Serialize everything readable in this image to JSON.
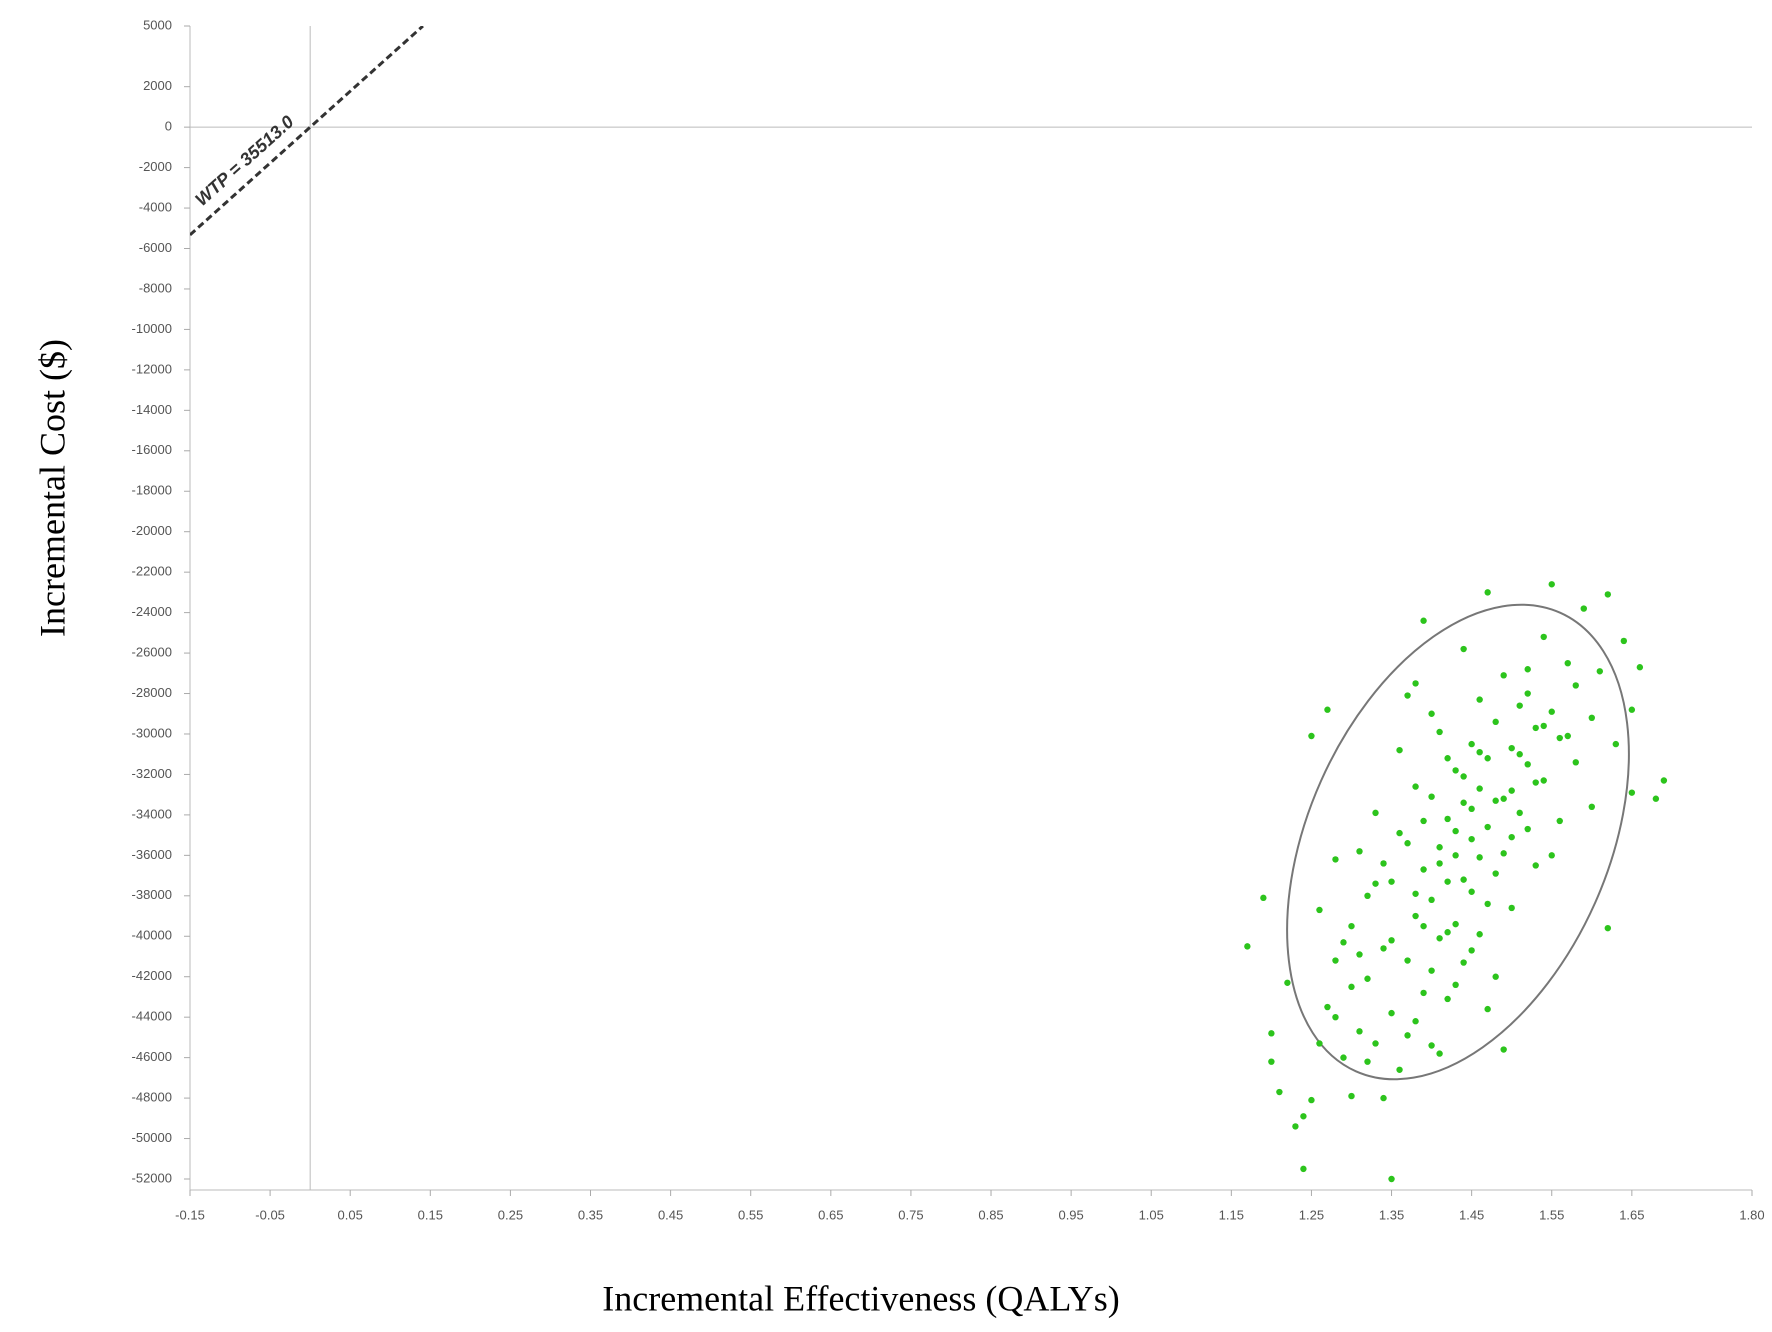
{
  "chart_data": {
    "type": "scatter",
    "x_label": "Incremental Effectiveness (QALYs)",
    "y_label": "Incremental Cost ($)",
    "color": "#2cc41c",
    "xlim": [
      -0.15,
      1.8
    ],
    "ylim": [
      -52000,
      5000
    ],
    "xticks": [
      -0.15,
      -0.05,
      0.05,
      0.15,
      0.25,
      0.35,
      0.45,
      0.55,
      0.65,
      0.75,
      0.85,
      0.95,
      1.05,
      1.15,
      1.25,
      1.35,
      1.45,
      1.55,
      1.65,
      {
        "value": 1.8,
        "label": "1.80"
      }
    ],
    "yticks": [
      5000,
      2000,
      0,
      -2000,
      -4000,
      -6000,
      -8000,
      -10000,
      -12000,
      -14000,
      -16000,
      -18000,
      -20000,
      -22000,
      -24000,
      -26000,
      -28000,
      -30000,
      -32000,
      -34000,
      -36000,
      -38000,
      -40000,
      -42000,
      -44000,
      -46000,
      -48000,
      -50000,
      -52000
    ],
    "quadrant_lines": true,
    "wtp_line": {
      "label": "WTP = 35513.0",
      "value": 35513
    },
    "x": [
      1.17,
      1.19,
      1.2,
      1.21,
      1.2,
      1.22,
      1.23,
      1.24,
      1.24,
      1.25,
      1.25,
      1.27,
      1.26,
      1.27,
      1.28,
      1.28,
      1.29,
      1.3,
      1.3,
      1.31,
      1.31,
      1.32,
      1.32,
      1.33,
      1.33,
      1.34,
      1.34,
      1.35,
      1.35,
      1.35,
      1.36,
      1.36,
      1.37,
      1.37,
      1.37,
      1.38,
      1.38,
      1.38,
      1.39,
      1.39,
      1.39,
      1.4,
      1.4,
      1.4,
      1.41,
      1.41,
      1.41,
      1.42,
      1.42,
      1.42,
      1.43,
      1.43,
      1.43,
      1.44,
      1.44,
      1.44,
      1.45,
      1.45,
      1.45,
      1.46,
      1.46,
      1.46,
      1.47,
      1.47,
      1.47,
      1.48,
      1.48,
      1.48,
      1.49,
      1.49,
      1.5,
      1.5,
      1.5,
      1.51,
      1.51,
      1.52,
      1.52,
      1.53,
      1.53,
      1.54,
      1.54,
      1.55,
      1.55,
      1.56,
      1.56,
      1.57,
      1.58,
      1.58,
      1.59,
      1.6,
      1.6,
      1.61,
      1.62,
      1.62,
      1.63,
      1.64,
      1.65,
      1.65,
      1.66,
      1.68,
      1.69,
      1.26,
      1.29,
      1.33,
      1.36,
      1.38,
      1.4,
      1.41,
      1.42,
      1.43,
      1.44,
      1.45,
      1.46,
      1.47,
      1.48,
      1.49,
      1.51,
      1.52,
      1.53,
      1.35,
      1.37,
      1.39,
      1.41,
      1.43,
      1.45,
      1.47,
      1.49,
      1.44,
      1.46,
      1.5,
      1.55,
      1.57,
      1.3,
      1.32,
      1.34,
      1.28,
      1.31,
      1.39,
      1.42,
      1.4,
      1.38,
      1.52,
      1.54
    ],
    "values": [
      -40500,
      -38100,
      -46200,
      -47700,
      -44800,
      -42300,
      -49400,
      -48900,
      -51500,
      -48100,
      -30100,
      -28800,
      -45300,
      -43500,
      -41200,
      -36200,
      -46000,
      -47900,
      -39500,
      -44700,
      -35800,
      -42100,
      -38000,
      -45300,
      -33900,
      -48000,
      -40600,
      -52000,
      -37300,
      -43800,
      -30800,
      -46600,
      -41200,
      -35400,
      -28100,
      -39000,
      -44200,
      -32600,
      -36700,
      -42800,
      -24400,
      -38200,
      -33100,
      -45400,
      -35600,
      -40100,
      -29900,
      -37300,
      -34200,
      -43100,
      -31800,
      -39400,
      -36000,
      -33400,
      -25800,
      -41300,
      -30500,
      -37800,
      -35200,
      -32700,
      -39900,
      -28300,
      -23000,
      -34600,
      -31200,
      -36900,
      -29400,
      -42000,
      -33200,
      -27100,
      -35100,
      -30700,
      -38600,
      -28600,
      -33900,
      -26800,
      -31500,
      -29700,
      -36500,
      -25200,
      -32300,
      -22600,
      -28900,
      -34300,
      -30200,
      -26500,
      -31400,
      -27600,
      -23800,
      -29200,
      -33600,
      -26900,
      -39600,
      -23100,
      -30500,
      -25400,
      -28800,
      -32900,
      -26700,
      -33200,
      -32300,
      -38700,
      -40300,
      -37400,
      -34900,
      -37900,
      -41700,
      -36400,
      -39800,
      -34800,
      -37200,
      -33700,
      -36100,
      -38400,
      -33300,
      -35900,
      -31000,
      -34700,
      -32400,
      -40200,
      -44900,
      -39500,
      -45800,
      -42400,
      -40700,
      -43600,
      -45600,
      -32100,
      -30900,
      -32800,
      -36000,
      -30100,
      -42500,
      -46200,
      -36400,
      -44000,
      -40900,
      -34300,
      -31200,
      -29000,
      -27500,
      -28000,
      -29600
    ]
  }
}
